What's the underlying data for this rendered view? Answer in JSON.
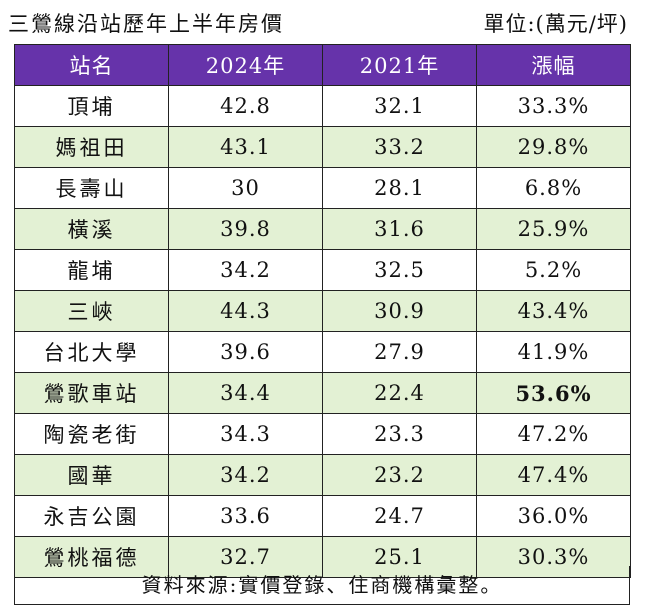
{
  "title": "三鶯線沿站歷年上半年房價",
  "unit": "單位:(萬元/坪)",
  "headers": [
    "站名",
    "2024年",
    "2021年",
    "漲幅"
  ],
  "rows": [
    {
      "name": "頂埔",
      "y2024": "42.8",
      "y2021": "32.1",
      "growth": "33.3%"
    },
    {
      "name": "媽祖田",
      "y2024": "43.1",
      "y2021": "33.2",
      "growth": "29.8%"
    },
    {
      "name": "長壽山",
      "y2024": "30",
      "y2021": "28.1",
      "growth": "6.8%"
    },
    {
      "name": "橫溪",
      "y2024": "39.8",
      "y2021": "31.6",
      "growth": "25.9%"
    },
    {
      "name": "龍埔",
      "y2024": "34.2",
      "y2021": "32.5",
      "growth": "5.2%"
    },
    {
      "name": "三峽",
      "y2024": "44.3",
      "y2021": "30.9",
      "growth": "43.4%"
    },
    {
      "name": "台北大學",
      "y2024": "39.6",
      "y2021": "27.9",
      "growth": "41.9%"
    },
    {
      "name": "鶯歌車站",
      "y2024": "34.4",
      "y2021": "22.4",
      "growth": "53.6%"
    },
    {
      "name": "陶瓷老街",
      "y2024": "34.3",
      "y2021": "23.3",
      "growth": "47.2%"
    },
    {
      "name": "國華",
      "y2024": "34.2",
      "y2021": "23.2",
      "growth": "47.4%"
    },
    {
      "name": "永吉公園",
      "y2024": "33.6",
      "y2021": "24.7",
      "growth": "36.0%"
    },
    {
      "name": "鶯桃福德",
      "y2024": "32.7",
      "y2021": "25.1",
      "growth": "30.3%"
    }
  ],
  "footer": "資料來源:實價登錄、住商機構彙整。",
  "colors": {
    "header_bg": "#6633aa",
    "alt_row_bg": "#e3f1d4"
  }
}
